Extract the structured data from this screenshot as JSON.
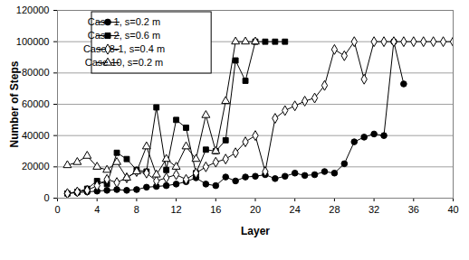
{
  "chart_data": {
    "type": "line",
    "x_label": "Layer",
    "y_label": "Number of Steps",
    "x": [
      1,
      2,
      3,
      4,
      5,
      6,
      7,
      8,
      9,
      10,
      11,
      12,
      13,
      14,
      15,
      16,
      17,
      18,
      19,
      20,
      21,
      22,
      23,
      24,
      25,
      26,
      27,
      28,
      29,
      30,
      31,
      32,
      33,
      34,
      35,
      36,
      37,
      38,
      39,
      40
    ],
    "xlim": [
      0,
      40
    ],
    "xticks": [
      0,
      4,
      8,
      12,
      16,
      20,
      24,
      28,
      32,
      36,
      40
    ],
    "ylim": [
      0,
      120000
    ],
    "yticks": [
      0,
      20000,
      40000,
      60000,
      80000,
      100000,
      120000
    ],
    "grid": "y",
    "legend": "upper left",
    "series": [
      {
        "name": "Case 1, s=0.2 m",
        "color": "#000000",
        "marker": "circle",
        "values": [
          3000,
          3500,
          4000,
          4500,
          5000,
          5500,
          5000,
          5500,
          7000,
          7500,
          8000,
          9000,
          10500,
          13000,
          9000,
          8000,
          13500,
          11000,
          13500,
          14000,
          15000,
          12500,
          14000,
          16000,
          14500,
          15000,
          17000,
          16000,
          22000,
          36000,
          39000,
          41000,
          40000,
          100000,
          73000,
          null,
          null,
          null,
          null,
          null
        ]
      },
      {
        "name": "Case 2, s=0.6 m",
        "color": "#000000",
        "marker": "square",
        "values": [
          3000,
          4000,
          6000,
          11000,
          9000,
          29000,
          25000,
          18000,
          17000,
          58000,
          18000,
          50000,
          45000,
          16000,
          31000,
          30000,
          37000,
          88000,
          75000,
          100000,
          100000,
          100000,
          100000,
          null,
          null,
          null,
          null,
          null,
          null,
          null,
          null,
          null,
          null,
          null,
          null,
          null,
          null,
          null,
          null,
          null
        ]
      },
      {
        "name": "Case 8-1, s=0.4 m",
        "color": "#000000",
        "marker": "diamond-open",
        "values": [
          3000,
          4000,
          5000,
          8000,
          12000,
          10000,
          13000,
          17000,
          16000,
          11000,
          13000,
          15000,
          12000,
          16000,
          20000,
          23000,
          25000,
          29000,
          36000,
          40000,
          17000,
          51000,
          56000,
          59000,
          62000,
          64000,
          72000,
          95000,
          91000,
          100000,
          76000,
          100000,
          100000,
          100000,
          100000,
          100000,
          100000,
          100000,
          100000,
          100000
        ]
      },
      {
        "name": "Case 10, s=0.2 m",
        "color": "#000000",
        "marker": "triangle-open",
        "values": [
          21000,
          23000,
          27000,
          20000,
          18000,
          23000,
          13000,
          17000,
          33000,
          15000,
          25000,
          20000,
          33000,
          25000,
          53000,
          30000,
          62000,
          100000,
          100000,
          100000,
          null,
          null,
          null,
          null,
          null,
          null,
          null,
          null,
          null,
          null,
          null,
          null,
          null,
          null,
          null,
          null,
          null,
          null,
          null,
          null
        ]
      }
    ]
  }
}
